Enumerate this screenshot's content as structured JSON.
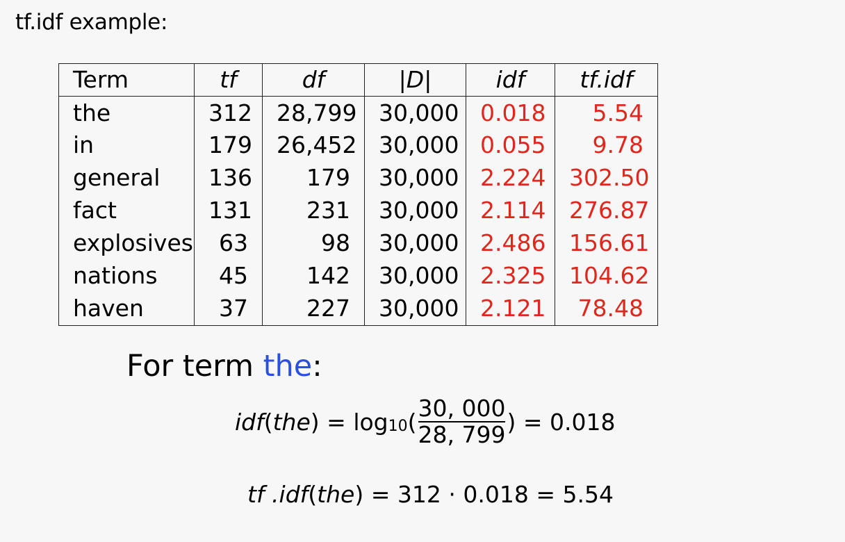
{
  "heading": "tf.idf example:",
  "table": {
    "headers": [
      "Term",
      "tf",
      "df",
      "|D|",
      "idf",
      "tf.idf"
    ],
    "rows": [
      [
        "the",
        "312",
        "28,799",
        "30,000",
        "0.018",
        "5.54"
      ],
      [
        "in",
        "179",
        "26,452",
        "30,000",
        "0.055",
        "9.78"
      ],
      [
        "general",
        "136",
        "179",
        "30,000",
        "2.224",
        "302.50"
      ],
      [
        "fact",
        "131",
        "231",
        "30,000",
        "2.114",
        "276.87"
      ],
      [
        "explosives",
        "63",
        "98",
        "30,000",
        "2.486",
        "156.61"
      ],
      [
        "nations",
        "45",
        "142",
        "30,000",
        "2.325",
        "104.62"
      ],
      [
        "haven",
        "37",
        "227",
        "30,000",
        "2.121",
        "78.48"
      ]
    ]
  },
  "highlight_color": "#e0271d",
  "term_color": "#2b4fe0",
  "example": {
    "prefix": "For term ",
    "term": "the",
    "suffix": ":"
  },
  "equation1": {
    "lhs_fn": "idf",
    "lhs_arg": "the",
    "equals": "=",
    "log": "log",
    "log_base": "10",
    "numerator": "30, 000",
    "denominator": "28, 799",
    "result": "0.018"
  },
  "equation2": {
    "lhs_fn": "tf .idf",
    "lhs_arg": "the",
    "tf": "312",
    "dot": "·",
    "idf": "0.018",
    "result": "5.54"
  }
}
